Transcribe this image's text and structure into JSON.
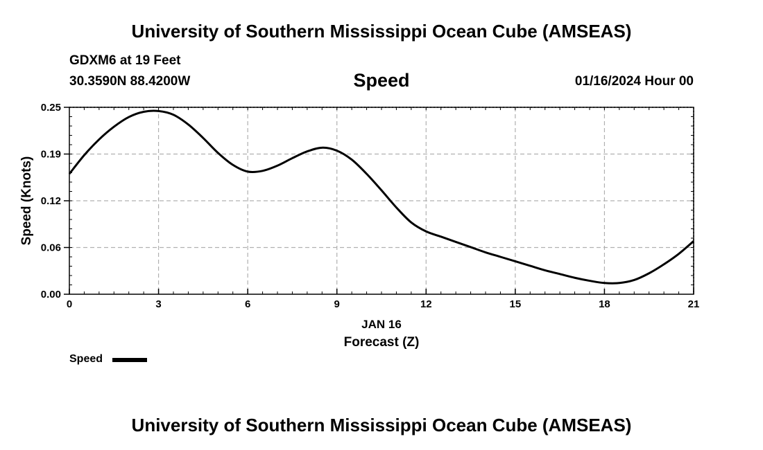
{
  "header": {
    "top_title": "University of Southern Mississippi Ocean Cube (AMSEAS)",
    "station": "GDXM6 at 19 Feet",
    "coords": "30.3590N  88.4200W",
    "center_title": "Speed",
    "datetime": "01/16/2024 Hour 00"
  },
  "footer": {
    "bottom_title": "University of Southern Mississippi Ocean Cube (AMSEAS)"
  },
  "legend": {
    "label": "Speed"
  },
  "chart_data": {
    "type": "line",
    "title": "Speed",
    "xlabel": "Forecast (Z)",
    "xlabel_date": "JAN 16",
    "ylabel": "Speed (Knots)",
    "xlim": [
      0,
      21
    ],
    "ylim": [
      0,
      0.25
    ],
    "xticks": [
      0,
      3,
      6,
      9,
      12,
      15,
      18,
      21
    ],
    "yticks": [
      0.0,
      0.0625,
      0.125,
      0.1875,
      0.25
    ],
    "ytick_labels": [
      "0.00",
      "0.06",
      "0.12",
      "0.19",
      "0.25"
    ],
    "grid": true,
    "series": [
      {
        "name": "Speed",
        "x": [
          0,
          0.5,
          1,
          1.5,
          2,
          2.5,
          3,
          3.5,
          4,
          4.5,
          5,
          5.5,
          6,
          6.5,
          7,
          7.5,
          8,
          8.5,
          9,
          9.5,
          10,
          10.5,
          11,
          11.5,
          12,
          12.5,
          13,
          13.5,
          14,
          14.5,
          15,
          15.5,
          16,
          16.5,
          17,
          17.5,
          18,
          18.5,
          19,
          19.5,
          20,
          20.5,
          21
        ],
        "values": [
          0.161,
          0.186,
          0.207,
          0.224,
          0.237,
          0.244,
          0.245,
          0.24,
          0.227,
          0.209,
          0.189,
          0.173,
          0.164,
          0.165,
          0.172,
          0.182,
          0.191,
          0.196,
          0.192,
          0.18,
          0.161,
          0.139,
          0.116,
          0.096,
          0.084,
          0.077,
          0.07,
          0.063,
          0.056,
          0.05,
          0.044,
          0.038,
          0.032,
          0.027,
          0.022,
          0.018,
          0.015,
          0.015,
          0.019,
          0.028,
          0.04,
          0.054,
          0.071
        ]
      }
    ]
  }
}
